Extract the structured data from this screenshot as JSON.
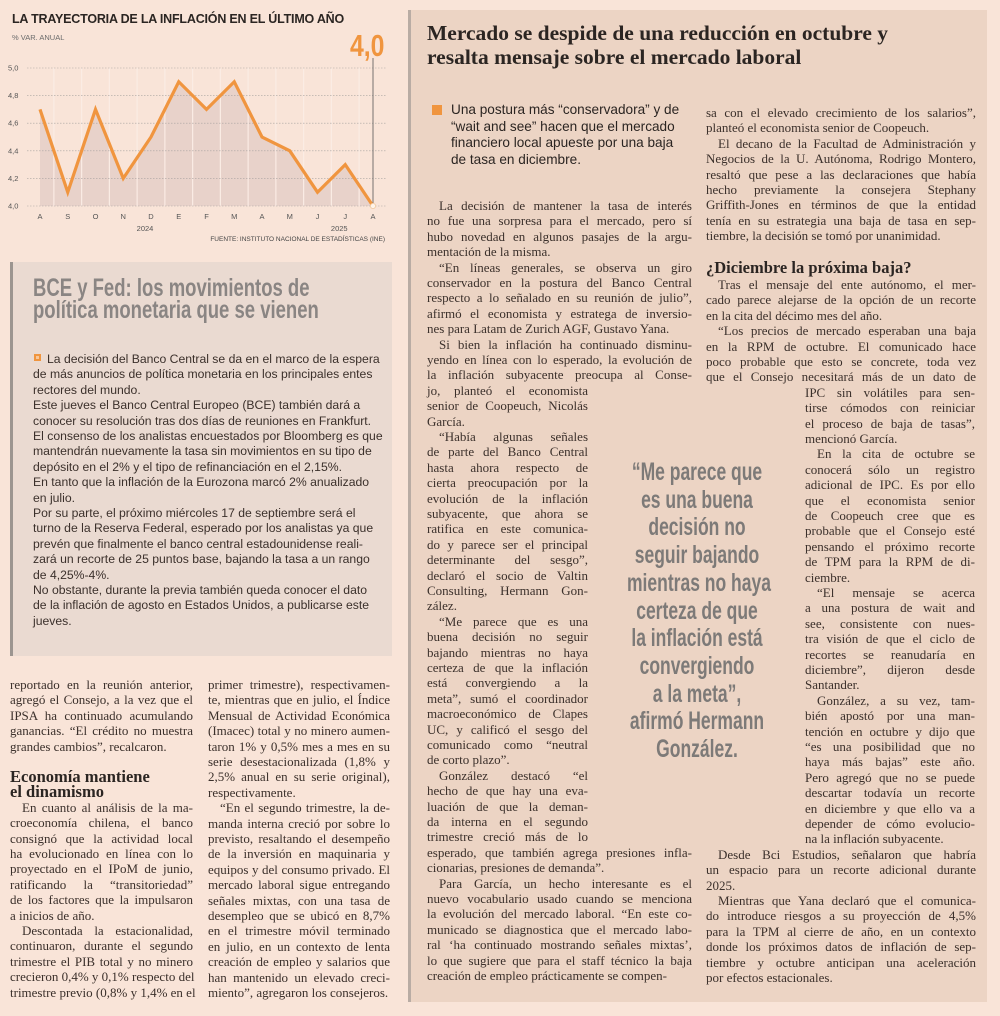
{
  "chart_data": {
    "type": "line",
    "title": "LA TRAYECTORIA DE LA INFLACIÓN EN EL ÚLTIMO AÑO",
    "ylabel": "% VAR. ANUAL",
    "categories": [
      "A",
      "S",
      "O",
      "N",
      "D",
      "E",
      "F",
      "M",
      "A",
      "M",
      "J",
      "J",
      "A"
    ],
    "year_labels": [
      {
        "label": "2024",
        "category_index": 4
      },
      {
        "label": "2025",
        "category_index": 11
      }
    ],
    "values": [
      4.7,
      4.1,
      4.7,
      4.2,
      4.5,
      4.9,
      4.7,
      4.9,
      4.5,
      4.4,
      4.1,
      4.3,
      4.0
    ],
    "ylim": [
      4.0,
      5.0
    ],
    "yticks": [
      {
        "value": 4.0,
        "label": "4,0"
      },
      {
        "value": 4.2,
        "label": "4,2"
      },
      {
        "value": 4.4,
        "label": "4,4"
      },
      {
        "value": 4.6,
        "label": "4,6"
      },
      {
        "value": 4.8,
        "label": "4,8"
      },
      {
        "value": 5.0,
        "label": "5,0"
      }
    ],
    "highlight_label": "4,0",
    "source": "FUENTE: INSTITUTO NACIONAL DE ESTADÍSTICAS (INE)",
    "grid": true,
    "colors": {
      "line": "#f0953f",
      "area": "#e8d2ca",
      "grid": "#a9a3a0"
    }
  },
  "sidebar": {
    "title_lines": [
      "BCE y Fed: los movimientos de",
      "política monetaria que se vienen"
    ],
    "lines": [
      "La decisión del Banco Central se da en el marco de la espera",
      "de más anuncios de política monetaria en los principales entes",
      "rectores del mundo.",
      "Este jueves el Banco Central Europeo (BCE) también dará a",
      "conocer su resolución tras dos días de reuniones en Frankfurt.",
      "El consenso de los analistas encuestados por Bloomberg es que",
      "mantendrán nuevamente la tasa sin movimientos en su tipo de",
      "depósito en el 2% y el tipo de refinanciación en el 2,15%.",
      "En tanto que la inflación de la Eurozona marcó 2% anualizado",
      "en julio.",
      "Por su parte, el próximo miércoles 17 de septiembre será el",
      "turno de la Reserva Federal, esperado por los analistas ya que",
      "prevén que finalmente el banco central estadounidense reali-",
      "zará un recorte de 25 puntos base, bajando la tasa a un rango",
      "de 4,25%-4%.",
      "No obstante, durante la previa también queda conocer el dato",
      "de la inflación de agosto en Estados Unidos, a publicarse este",
      "jueves."
    ]
  },
  "left_col1": [
    {
      "continued": true,
      "lines": [
        "reportado en la reunión anterior,",
        "agregó el Consejo, a la vez que el",
        "IPSA ha continuado acumulando",
        "ganancias. “El crédito no muestra",
        "grandes cambios”, recalcaron."
      ]
    },
    {
      "heading": [
        "Economía mantiene",
        "el dinamismo"
      ]
    },
    {
      "continued": false,
      "lines": [
        "En cuanto al análisis de la ma-",
        "croeconomía chilena, el banco",
        "consignó que la actividad local",
        "ha evolucionado en línea con lo",
        "proyectado en el IPoM de junio,",
        "ratificando la “transitoriedad”",
        "de los factores que la impulsaron",
        "a inicios de año."
      ]
    },
    {
      "continued": false,
      "lines": [
        "Descontada la estacionalidad,",
        "continuaron, durante el segundo",
        "trimestre el PIB total y no minero",
        "crecieron 0,4% y 0,1% respecto del",
        "trimestre previo (0,8% y 1,4% en el"
      ]
    }
  ],
  "left_col2": [
    {
      "continued": true,
      "lines": [
        "primer trimestre), respectivamen-",
        "te, mientras que en julio, el Índice",
        "Mensual de Actividad Económica",
        "(Imacec) total y no minero aumen-",
        "taron 1% y 0,5% mes a mes en su",
        "serie desestacionalizada (1,8% y",
        "2,5% anual en su serie original),",
        "respectivamente."
      ]
    },
    {
      "continued": false,
      "lines": [
        "“En el segundo trimestre, la de-",
        "manda interna creció por sobre lo",
        "previsto, resaltando el desempeño",
        "de la inversión en maquinaria y",
        "equipos y del consumo privado. El",
        "mercado laboral sigue entregando",
        "señales mixtas, con una tasa de",
        "desempleo que se ubicó en 8,7%",
        "en el trimestre móvil terminado",
        "en julio, en un contexto de lenta",
        "creación de empleo y salarios que",
        "han mantenido un elevado creci-",
        "miento”, agregaron los consejeros."
      ]
    }
  ],
  "article": {
    "headline_lines": [
      "Mercado se despide de una reducción en octubre y",
      "resalta mensaje sobre el mercado laboral"
    ],
    "deck_lines": [
      "Una postura más “conservadora” y de",
      "“wait and see” hacen que el mercado",
      "financiero local apueste por una baja",
      "de tasa en diciembre."
    ],
    "pull_quote_lines": [
      "“Me parece que",
      "es una buena",
      "decisión no",
      "seguir bajando",
      "mientras no haya",
      "certeza de que",
      "la inflación está",
      "convergiendo",
      "a la meta”,",
      "afirmó Hermann",
      "González."
    ],
    "middle": [
      {
        "continued": false,
        "lines": [
          "La decisión de mantener la tasa de interés",
          "no fue una sorpresa para el mercado, pero sí",
          "hubo novedad en algunos pasajes de la argu-",
          "mentación de la misma."
        ]
      },
      {
        "continued": false,
        "lines": [
          "“En líneas generales, se observa un giro",
          "conservador en la postura del Banco Central",
          "respecto a lo señalado en su reunión de julio”,",
          "afirmó el economista y estratega de inversio-",
          "nes para Latam de Zurich AGF, Gustavo Yana."
        ]
      },
      {
        "continued": false,
        "lines": [
          "Si bien la inflación ha continuado disminu-",
          "yendo en línea con lo esperado, la evolución de",
          "la inflación subyacente preocupa al Conse-",
          "jo, planteó el economista",
          "senior de Coopeuch, Nicolás",
          "García."
        ]
      },
      {
        "continued": false,
        "lines": [
          "“Había algunas señales",
          "de parte del Banco Central",
          "hasta ahora respecto de",
          "cierta preocupación por la",
          "evolución de la inflación",
          "subyacente, que ahora se",
          "ratifica en este comunica-",
          "do y parece ser el principal",
          "determinante del sesgo”,",
          "declaró el socio de Valtin",
          "Consulting, Hermann Gon-",
          "zález."
        ]
      },
      {
        "continued": false,
        "lines": [
          "“Me parece que es una",
          "buena decisión no seguir",
          "bajando mientras no haya",
          "certeza de que la inflación",
          "está convergiendo a la",
          "meta”, sumó el coordinador",
          "macroeconómico de Clapes",
          "UC, y calificó el sesgo del",
          "comunicado como “neutral",
          "de corto plazo”."
        ]
      },
      {
        "continued": false,
        "lines": [
          "González destacó “el",
          "hecho de que hay una eva-",
          "luación de que la deman-",
          "da interna en el segundo",
          "trimestre creció más de lo",
          "esperado, que también agrega presiones infla-",
          "cionarias, presiones de demanda”."
        ]
      },
      {
        "continued": false,
        "lines": [
          "Para García, un hecho interesante es el",
          "nuevo vocabulario usado cuando se menciona",
          "la evolución del mercado laboral. “En este co-",
          "municado se diagnostica que el mercado labo-",
          "ral ‘ha continuado mostrando señales mixtas’,",
          "lo que sugiere que para el staff técnico la baja",
          "creación de empleo prácticamente se compen-"
        ]
      }
    ],
    "right_top": [
      {
        "continued": true,
        "lines": [
          "sa con el elevado crecimiento de los salarios”,",
          "planteó el economista senior de Coopeuch."
        ]
      },
      {
        "continued": false,
        "lines": [
          "El decano de la Facultad de Administración y",
          "Negocios de la U. Autónoma, Rodrigo Montero,",
          "resaltó que pese a las declaraciones que había",
          "hecho previamente la consejera Stephany",
          "Griffith-Jones en términos de que la entidad",
          "tenía en su estrategia una baja de tasa en sep-",
          "tiembre, la decisión se tomó por unanimidad."
        ]
      }
    ],
    "right_heading": "¿Diciembre la próxima baja?",
    "right_bottom": [
      {
        "continued": false,
        "lines": [
          "Tras el mensaje del ente autónomo, el mer-",
          "cado parece alejarse de la opción de un recorte",
          "en la cita del décimo mes del año."
        ]
      },
      {
        "continued": false,
        "lines": [
          "“Los precios de mercado esperaban una baja",
          "en la RPM de octubre. El comunicado hace",
          "poco probable que esto se concrete, toda vez",
          "que el Consejo necesitará más de un dato de",
          "IPC sin volátiles para sen-",
          "tirse cómodos con reiniciar",
          "el proceso de baja de tasas”,",
          "mencionó García."
        ]
      },
      {
        "continued": false,
        "lines": [
          "En la cita de octubre se",
          "conocerá sólo un registro",
          "adicional de IPC. Es por ello",
          "que el economista senior",
          "de Coopeuch cree que es",
          "probable que el Consejo esté",
          "pensando el próximo recorte",
          "de TPM para la RPM de di-",
          "ciembre."
        ]
      },
      {
        "continued": false,
        "lines": [
          "“El mensaje se acerca",
          "a una postura de wait and",
          "see, consistente con nues-",
          "tra visión de que el ciclo de",
          "recortes se reanudaría en",
          "diciembre”, dijeron desde",
          "Santander."
        ]
      },
      {
        "continued": false,
        "lines": [
          "González, a su vez, tam-",
          "bién apostó por una man-",
          "tención en octubre y dijo que",
          "“es una posibilidad que no",
          "haya más bajas” este año.",
          "Pero agregó que no se puede",
          "descartar todavía un recorte",
          "en diciembre y que ello va a",
          "depender de cómo evolucio-",
          "na la inflación subyacente."
        ]
      },
      {
        "continued": false,
        "lines": [
          "Desde Bci Estudios, señalaron que habría",
          "un espacio para un recorte adicional durante",
          "2025."
        ]
      },
      {
        "continued": false,
        "lines": [
          "Mientras que Yana declaró que el comunica-",
          "do introduce riesgos a su proyección de 4,5%",
          "para la TPM al cierre de año, en un contexto",
          "donde los próximos datos de inflación de sep-",
          "tiembre y octubre anticipan una aceleración",
          "por efectos estacionales."
        ]
      }
    ]
  }
}
